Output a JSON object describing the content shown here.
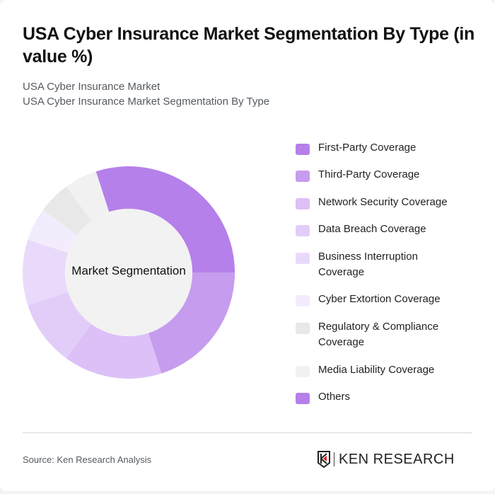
{
  "header": {
    "title": "USA Cyber Insurance Market Segmentation By Type (in value %)",
    "breadcrumb_1": "USA Cyber Insurance Market",
    "breadcrumb_2": "USA Cyber Insurance Market Segmentation By Type"
  },
  "chart_center_label": "Market Segmentation",
  "legend": [
    {
      "label": "First-Party Coverage",
      "color": "#b580ea"
    },
    {
      "label": "Third-Party Coverage",
      "color": "#c69cee"
    },
    {
      "label": "Network Security Coverage",
      "color": "#dcc0f7"
    },
    {
      "label": "Data Breach Coverage",
      "color": "#e2cdf8"
    },
    {
      "label": "Business Interruption Coverage",
      "color": "#e9dafb"
    },
    {
      "label": "Cyber Extortion Coverage",
      "color": "#f3ecfd"
    },
    {
      "label": "Regulatory & Compliance Coverage",
      "color": "#e8e8e8"
    },
    {
      "label": "Media Liability Coverage",
      "color": "#f1f1f1"
    },
    {
      "label": "Others",
      "color": "#b580ea"
    }
  ],
  "chart_data": {
    "type": "pie",
    "title": "USA Cyber Insurance Market Segmentation By Type (in value %)",
    "center_label": "Market Segmentation",
    "categories": [
      "First-Party Coverage",
      "Third-Party Coverage",
      "Network Security Coverage",
      "Data Breach Coverage",
      "Business Interruption Coverage",
      "Cyber Extortion Coverage",
      "Regulatory & Compliance Coverage",
      "Media Liability Coverage",
      "Others"
    ],
    "values": [
      30,
      20,
      15,
      10,
      10,
      5,
      5,
      5,
      0
    ],
    "colors": [
      "#b580ea",
      "#c69cee",
      "#dcc0f7",
      "#e2cdf8",
      "#e9dafb",
      "#f3ecfd",
      "#e8e8e8",
      "#f1f1f1",
      "#b580ea"
    ],
    "start_angle_deg": -18,
    "donut": true,
    "legend_position": "right"
  },
  "footer": {
    "source": "Source: Ken Research Analysis",
    "logo_text": "KEN RESEARCH"
  }
}
